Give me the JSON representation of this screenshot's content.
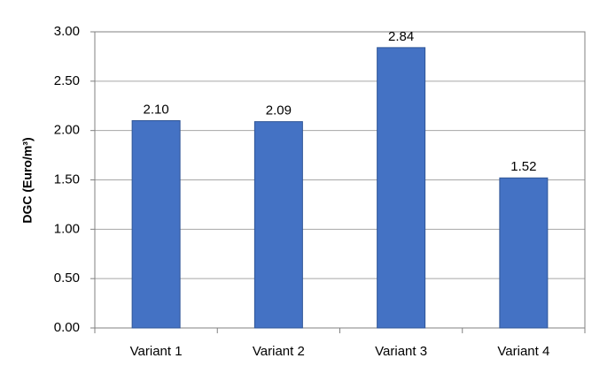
{
  "chart_data": {
    "type": "bar",
    "y_label": "DGC (Euro/m³)",
    "categories": [
      "Variant 1",
      "Variant 2",
      "Variant 3",
      "Variant 4"
    ],
    "values": [
      2.1,
      2.09,
      2.84,
      1.52
    ],
    "value_labels": [
      "2.10",
      "2.09",
      "2.84",
      "1.52"
    ],
    "color": "#4472c4",
    "ylim": [
      0,
      3
    ],
    "yticks": [
      {
        "value": 0,
        "label": "0.00"
      },
      {
        "value": 0.5,
        "label": "0.50"
      },
      {
        "value": 1,
        "label": "1.00"
      },
      {
        "value": 1.5,
        "label": "1.50"
      },
      {
        "value": 2,
        "label": "2.00"
      },
      {
        "value": 2.5,
        "label": "2.50"
      },
      {
        "value": 3,
        "label": "3.00"
      }
    ],
    "grid": true
  }
}
